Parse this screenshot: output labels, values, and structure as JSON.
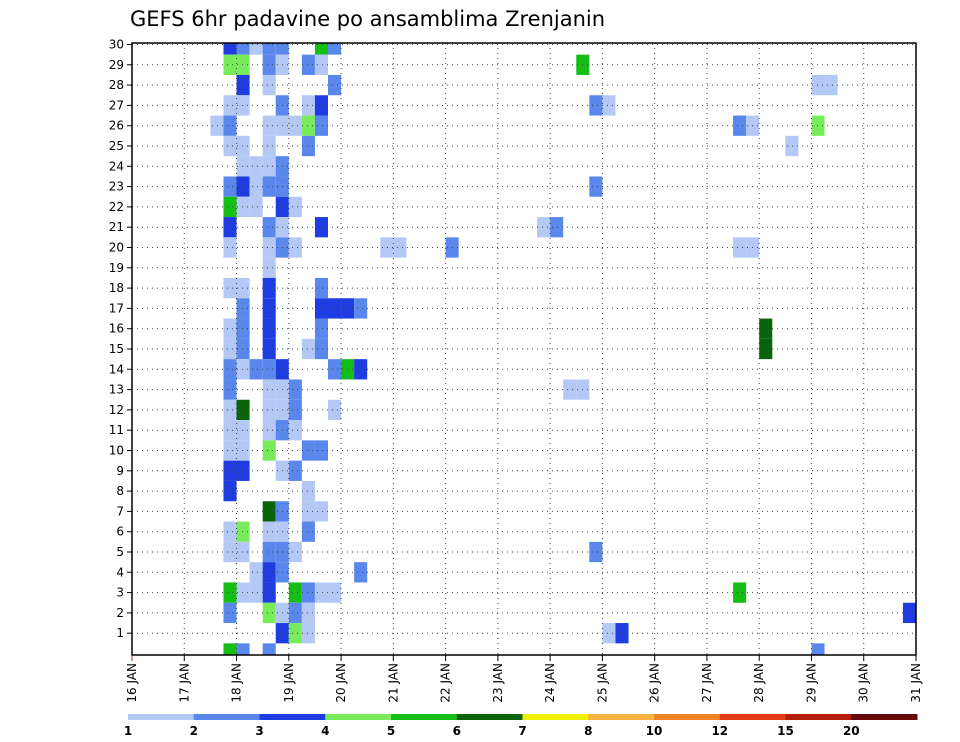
{
  "chart_data": {
    "type": "heatmap",
    "title": "GEFS 6hr padavine po ansamblima Zrenjanin",
    "xlabel": "",
    "ylabel": "",
    "x_ticks": [
      "16 JAN",
      "17 JAN",
      "18 JAN",
      "19 JAN",
      "20 JAN",
      "21 JAN",
      "22 JAN",
      "23 JAN",
      "24 JAN",
      "25 JAN",
      "26 JAN",
      "27 JAN",
      "28 JAN",
      "29 JAN",
      "30 JAN",
      "31 JAN"
    ],
    "y_ticks": [
      "1",
      "2",
      "3",
      "4",
      "5",
      "6",
      "7",
      "8",
      "9",
      "10",
      "11",
      "12",
      "13",
      "14",
      "15",
      "16",
      "17",
      "18",
      "19",
      "20",
      "21",
      "22",
      "23",
      "24",
      "25",
      "26",
      "27",
      "28",
      "29",
      "30"
    ],
    "x_unit": "6-hourly steps from 16 JAN 00Z",
    "xlim": [
      0,
      60
    ],
    "ylim": [
      0,
      30
    ],
    "grid": true,
    "colorbar": {
      "labels": [
        "1",
        "2",
        "3",
        "4",
        "5",
        "6",
        "7",
        "8",
        "10",
        "12",
        "15",
        "20"
      ],
      "colors": [
        "#b4c8f5",
        "#5a87eb",
        "#1e3ce0",
        "#78eb5a",
        "#14be14",
        "#0a640a",
        "#f0f00a",
        "#f5b43c",
        "#f08228",
        "#e13c14",
        "#b41e0a",
        "#640a0a"
      ]
    },
    "cells": [
      {
        "member": 30,
        "x": 7,
        "c": 3
      },
      {
        "member": 30,
        "x": 8,
        "c": 2
      },
      {
        "member": 30,
        "x": 9,
        "c": 1
      },
      {
        "member": 30,
        "x": 10,
        "c": 2
      },
      {
        "member": 30,
        "x": 11,
        "c": 2
      },
      {
        "member": 30,
        "x": 14,
        "c": 5
      },
      {
        "member": 30,
        "x": 15,
        "c": 2
      },
      {
        "member": 29,
        "x": 7,
        "c": 4
      },
      {
        "member": 29,
        "x": 8,
        "c": 4
      },
      {
        "member": 29,
        "x": 10,
        "c": 2
      },
      {
        "member": 29,
        "x": 11,
        "c": 1
      },
      {
        "member": 29,
        "x": 13,
        "c": 2
      },
      {
        "member": 29,
        "x": 14,
        "c": 1
      },
      {
        "member": 29,
        "x": 34,
        "c": 5
      },
      {
        "member": 28,
        "x": 8,
        "c": 3
      },
      {
        "member": 28,
        "x": 10,
        "c": 1
      },
      {
        "member": 28,
        "x": 15,
        "c": 2
      },
      {
        "member": 28,
        "x": 52,
        "c": 1
      },
      {
        "member": 28,
        "x": 53,
        "c": 1
      },
      {
        "member": 27,
        "x": 7,
        "c": 1
      },
      {
        "member": 27,
        "x": 8,
        "c": 1
      },
      {
        "member": 27,
        "x": 11,
        "c": 2
      },
      {
        "member": 27,
        "x": 13,
        "c": 1
      },
      {
        "member": 27,
        "x": 14,
        "c": 3
      },
      {
        "member": 27,
        "x": 35,
        "c": 2
      },
      {
        "member": 27,
        "x": 36,
        "c": 1
      },
      {
        "member": 26,
        "x": 6,
        "c": 1
      },
      {
        "member": 26,
        "x": 7,
        "c": 2
      },
      {
        "member": 26,
        "x": 10,
        "c": 1
      },
      {
        "member": 26,
        "x": 11,
        "c": 1
      },
      {
        "member": 26,
        "x": 12,
        "c": 1
      },
      {
        "member": 26,
        "x": 13,
        "c": 4
      },
      {
        "member": 26,
        "x": 14,
        "c": 2
      },
      {
        "member": 26,
        "x": 46,
        "c": 2
      },
      {
        "member": 26,
        "x": 47,
        "c": 1
      },
      {
        "member": 26,
        "x": 52,
        "c": 4
      },
      {
        "member": 25,
        "x": 7,
        "c": 1
      },
      {
        "member": 25,
        "x": 8,
        "c": 1
      },
      {
        "member": 25,
        "x": 10,
        "c": 1
      },
      {
        "member": 25,
        "x": 13,
        "c": 2
      },
      {
        "member": 25,
        "x": 50,
        "c": 1
      },
      {
        "member": 24,
        "x": 8,
        "c": 1
      },
      {
        "member": 24,
        "x": 9,
        "c": 1
      },
      {
        "member": 24,
        "x": 10,
        "c": 1
      },
      {
        "member": 24,
        "x": 11,
        "c": 2
      },
      {
        "member": 23,
        "x": 7,
        "c": 2
      },
      {
        "member": 23,
        "x": 8,
        "c": 3
      },
      {
        "member": 23,
        "x": 9,
        "c": 1
      },
      {
        "member": 23,
        "x": 10,
        "c": 2
      },
      {
        "member": 23,
        "x": 11,
        "c": 2
      },
      {
        "member": 23,
        "x": 35,
        "c": 2
      },
      {
        "member": 22,
        "x": 7,
        "c": 5
      },
      {
        "member": 22,
        "x": 8,
        "c": 1
      },
      {
        "member": 22,
        "x": 9,
        "c": 1
      },
      {
        "member": 22,
        "x": 11,
        "c": 3
      },
      {
        "member": 22,
        "x": 12,
        "c": 1
      },
      {
        "member": 21,
        "x": 7,
        "c": 3
      },
      {
        "member": 21,
        "x": 10,
        "c": 2
      },
      {
        "member": 21,
        "x": 11,
        "c": 1
      },
      {
        "member": 21,
        "x": 14,
        "c": 3
      },
      {
        "member": 21,
        "x": 31,
        "c": 1
      },
      {
        "member": 21,
        "x": 32,
        "c": 2
      },
      {
        "member": 20,
        "x": 7,
        "c": 1
      },
      {
        "member": 20,
        "x": 10,
        "c": 1
      },
      {
        "member": 20,
        "x": 11,
        "c": 2
      },
      {
        "member": 20,
        "x": 12,
        "c": 1
      },
      {
        "member": 20,
        "x": 19,
        "c": 1
      },
      {
        "member": 20,
        "x": 20,
        "c": 1
      },
      {
        "member": 20,
        "x": 24,
        "c": 2
      },
      {
        "member": 20,
        "x": 46,
        "c": 1
      },
      {
        "member": 20,
        "x": 47,
        "c": 1
      },
      {
        "member": 19,
        "x": 10,
        "c": 1
      },
      {
        "member": 18,
        "x": 7,
        "c": 1
      },
      {
        "member": 18,
        "x": 8,
        "c": 1
      },
      {
        "member": 18,
        "x": 10,
        "c": 3
      },
      {
        "member": 18,
        "x": 14,
        "c": 2
      },
      {
        "member": 17,
        "x": 8,
        "c": 2
      },
      {
        "member": 17,
        "x": 10,
        "c": 3
      },
      {
        "member": 17,
        "x": 14,
        "c": 3
      },
      {
        "member": 17,
        "x": 15,
        "c": 3
      },
      {
        "member": 17,
        "x": 16,
        "c": 3
      },
      {
        "member": 17,
        "x": 17,
        "c": 2
      },
      {
        "member": 16,
        "x": 7,
        "c": 1
      },
      {
        "member": 16,
        "x": 8,
        "c": 2
      },
      {
        "member": 16,
        "x": 10,
        "c": 3
      },
      {
        "member": 16,
        "x": 14,
        "c": 2
      },
      {
        "member": 16,
        "x": 48,
        "c": 6
      },
      {
        "member": 15,
        "x": 7,
        "c": 1
      },
      {
        "member": 15,
        "x": 8,
        "c": 2
      },
      {
        "member": 15,
        "x": 10,
        "c": 3
      },
      {
        "member": 15,
        "x": 13,
        "c": 1
      },
      {
        "member": 15,
        "x": 14,
        "c": 2
      },
      {
        "member": 15,
        "x": 48,
        "c": 6
      },
      {
        "member": 14,
        "x": 7,
        "c": 2
      },
      {
        "member": 14,
        "x": 8,
        "c": 1
      },
      {
        "member": 14,
        "x": 9,
        "c": 2
      },
      {
        "member": 14,
        "x": 10,
        "c": 2
      },
      {
        "member": 14,
        "x": 11,
        "c": 3
      },
      {
        "member": 14,
        "x": 15,
        "c": 2
      },
      {
        "member": 14,
        "x": 16,
        "c": 5
      },
      {
        "member": 14,
        "x": 17,
        "c": 3
      },
      {
        "member": 13,
        "x": 7,
        "c": 2
      },
      {
        "member": 13,
        "x": 10,
        "c": 1
      },
      {
        "member": 13,
        "x": 11,
        "c": 1
      },
      {
        "member": 13,
        "x": 12,
        "c": 2
      },
      {
        "member": 13,
        "x": 33,
        "c": 1
      },
      {
        "member": 13,
        "x": 34,
        "c": 1
      },
      {
        "member": 12,
        "x": 7,
        "c": 1
      },
      {
        "member": 12,
        "x": 8,
        "c": 6
      },
      {
        "member": 12,
        "x": 10,
        "c": 1
      },
      {
        "member": 12,
        "x": 11,
        "c": 1
      },
      {
        "member": 12,
        "x": 12,
        "c": 2
      },
      {
        "member": 12,
        "x": 15,
        "c": 1
      },
      {
        "member": 11,
        "x": 7,
        "c": 1
      },
      {
        "member": 11,
        "x": 8,
        "c": 1
      },
      {
        "member": 11,
        "x": 10,
        "c": 1
      },
      {
        "member": 11,
        "x": 11,
        "c": 2
      },
      {
        "member": 11,
        "x": 12,
        "c": 1
      },
      {
        "member": 10,
        "x": 7,
        "c": 1
      },
      {
        "member": 10,
        "x": 8,
        "c": 1
      },
      {
        "member": 10,
        "x": 10,
        "c": 4
      },
      {
        "member": 10,
        "x": 13,
        "c": 2
      },
      {
        "member": 10,
        "x": 14,
        "c": 2
      },
      {
        "member": 9,
        "x": 7,
        "c": 3
      },
      {
        "member": 9,
        "x": 8,
        "c": 3
      },
      {
        "member": 9,
        "x": 11,
        "c": 1
      },
      {
        "member": 9,
        "x": 12,
        "c": 2
      },
      {
        "member": 8,
        "x": 7,
        "c": 3
      },
      {
        "member": 8,
        "x": 13,
        "c": 1
      },
      {
        "member": 7,
        "x": 10,
        "c": 6
      },
      {
        "member": 7,
        "x": 11,
        "c": 2
      },
      {
        "member": 7,
        "x": 13,
        "c": 1
      },
      {
        "member": 7,
        "x": 14,
        "c": 1
      },
      {
        "member": 6,
        "x": 7,
        "c": 1
      },
      {
        "member": 6,
        "x": 8,
        "c": 4
      },
      {
        "member": 6,
        "x": 10,
        "c": 1
      },
      {
        "member": 6,
        "x": 11,
        "c": 1
      },
      {
        "member": 6,
        "x": 13,
        "c": 2
      },
      {
        "member": 5,
        "x": 7,
        "c": 1
      },
      {
        "member": 5,
        "x": 8,
        "c": 1
      },
      {
        "member": 5,
        "x": 10,
        "c": 2
      },
      {
        "member": 5,
        "x": 11,
        "c": 2
      },
      {
        "member": 5,
        "x": 12,
        "c": 1
      },
      {
        "member": 5,
        "x": 35,
        "c": 2
      },
      {
        "member": 4,
        "x": 9,
        "c": 1
      },
      {
        "member": 4,
        "x": 10,
        "c": 3
      },
      {
        "member": 4,
        "x": 11,
        "c": 2
      },
      {
        "member": 4,
        "x": 17,
        "c": 2
      },
      {
        "member": 3,
        "x": 7,
        "c": 5
      },
      {
        "member": 3,
        "x": 8,
        "c": 1
      },
      {
        "member": 3,
        "x": 9,
        "c": 1
      },
      {
        "member": 3,
        "x": 10,
        "c": 3
      },
      {
        "member": 3,
        "x": 12,
        "c": 5
      },
      {
        "member": 3,
        "x": 13,
        "c": 2
      },
      {
        "member": 3,
        "x": 14,
        "c": 1
      },
      {
        "member": 3,
        "x": 15,
        "c": 1
      },
      {
        "member": 3,
        "x": 46,
        "c": 5
      },
      {
        "member": 2,
        "x": 7,
        "c": 2
      },
      {
        "member": 2,
        "x": 10,
        "c": 4
      },
      {
        "member": 2,
        "x": 11,
        "c": 1
      },
      {
        "member": 2,
        "x": 12,
        "c": 2
      },
      {
        "member": 2,
        "x": 13,
        "c": 1
      },
      {
        "member": 2,
        "x": 59,
        "c": 3
      },
      {
        "member": 1,
        "x": 11,
        "c": 3
      },
      {
        "member": 1,
        "x": 12,
        "c": 4
      },
      {
        "member": 1,
        "x": 13,
        "c": 1
      },
      {
        "member": 1,
        "x": 36,
        "c": 1
      },
      {
        "member": 1,
        "x": 37,
        "c": 3
      },
      {
        "member": 0,
        "x": 7,
        "c": 5
      },
      {
        "member": 0,
        "x": 8,
        "c": 2
      },
      {
        "member": 0,
        "x": 10,
        "c": 2
      },
      {
        "member": 0,
        "x": 52,
        "c": 2
      }
    ]
  }
}
